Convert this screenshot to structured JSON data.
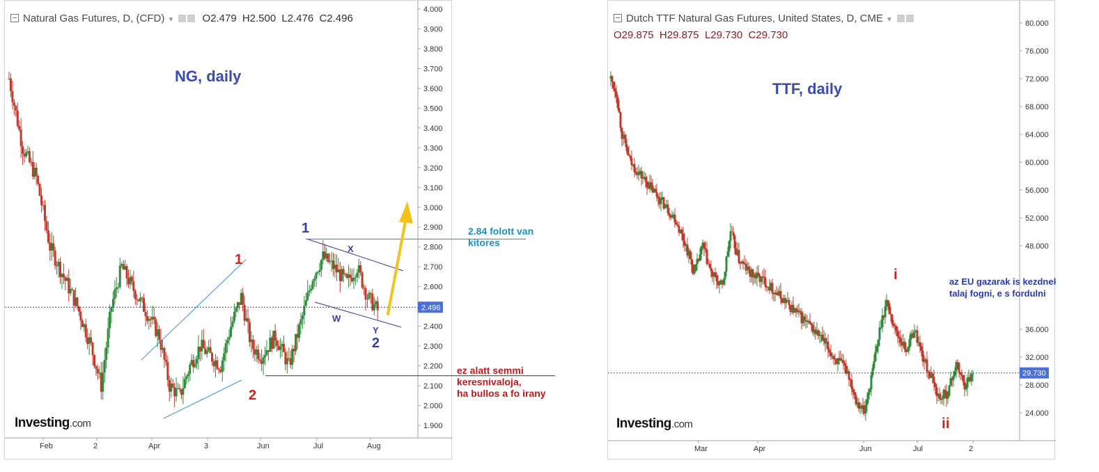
{
  "chart_data": [
    {
      "type": "candlestick",
      "legend": {
        "symbol": "Natural Gas Futures, D, (CFD)",
        "open": "O2.479",
        "high": "H2.500",
        "low": "L2.476",
        "close": "C2.496"
      },
      "watermark": "NG, daily",
      "last_price_label": "2.496",
      "last_price": 2.496,
      "ylim": [
        1.86,
        4.0
      ],
      "y_ticks": [
        "4.000",
        "3.900",
        "3.800",
        "3.700",
        "3.600",
        "3.500",
        "3.400",
        "3.300",
        "3.200",
        "3.100",
        "3.000",
        "2.900",
        "2.800",
        "2.700",
        "2.600",
        "2.500",
        "2.400",
        "2.300",
        "2.200",
        "2.100",
        "2.000",
        "1.900"
      ],
      "x_ticks": [
        "Feb",
        "2",
        "Apr",
        "3",
        "Jun",
        "Jul",
        "Aug"
      ],
      "wave_labels": [
        {
          "text": "1",
          "color": "#cc2222"
        },
        {
          "text": "2",
          "color": "#cc2222"
        },
        {
          "text": "1",
          "color": "#3a3aaa"
        },
        {
          "text": "2",
          "color": "#3a3aaa"
        },
        {
          "text": "X",
          "color": "#3a3aaa"
        },
        {
          "text": "W",
          "color": "#3a3aaa"
        },
        {
          "text": "Y",
          "color": "#3a3aaa"
        }
      ],
      "annotations": [
        {
          "lines": [
            "2.84 folott van",
            "kitores"
          ],
          "color": "#1a8fc0"
        },
        {
          "lines": [
            "ez alatt semmi",
            "keresnivaloja,",
            "ha bullos a fo irany"
          ],
          "color": "#c01818"
        }
      ],
      "levels": [
        2.84,
        2.15
      ],
      "logo": {
        "brand": "Investing",
        "suffix": ".com"
      }
    },
    {
      "type": "candlestick",
      "legend": {
        "symbol": "Dutch TTF Natural Gas Futures, United States, D, CME",
        "open": "O29.875",
        "high": "H29.875",
        "low": "L29.730",
        "close": "C29.730"
      },
      "watermark": "TTF, daily",
      "last_price_label": "29.730",
      "last_price": 29.73,
      "ylim": [
        20.0,
        82.0
      ],
      "y_ticks": [
        "80.000",
        "76.000",
        "72.000",
        "68.000",
        "64.000",
        "60.000",
        "56.000",
        "52.000",
        "48.000",
        "",
        "",
        "36.000",
        "32.000",
        "28.000",
        "24.000"
      ],
      "x_ticks": [
        "Mar",
        "Apr",
        "Jun",
        "Jul",
        "2"
      ],
      "wave_labels": [
        {
          "text": "i",
          "color": "#cc2222"
        },
        {
          "text": "ii",
          "color": "#cc2222"
        }
      ],
      "annotations": [
        {
          "lines": [
            "az EU gazarak is kezdnek",
            "talaj fogni, e s fordulni"
          ],
          "color": "#2a3aaa"
        }
      ],
      "logo": {
        "brand": "Investing",
        "suffix": ".com"
      }
    }
  ],
  "colors": {
    "up": "#2e8b3a",
    "down": "#c0392b",
    "last_price": "#4a6fd6",
    "grid_dot": "#2a4aa0",
    "arrow": "#f2c21a"
  }
}
